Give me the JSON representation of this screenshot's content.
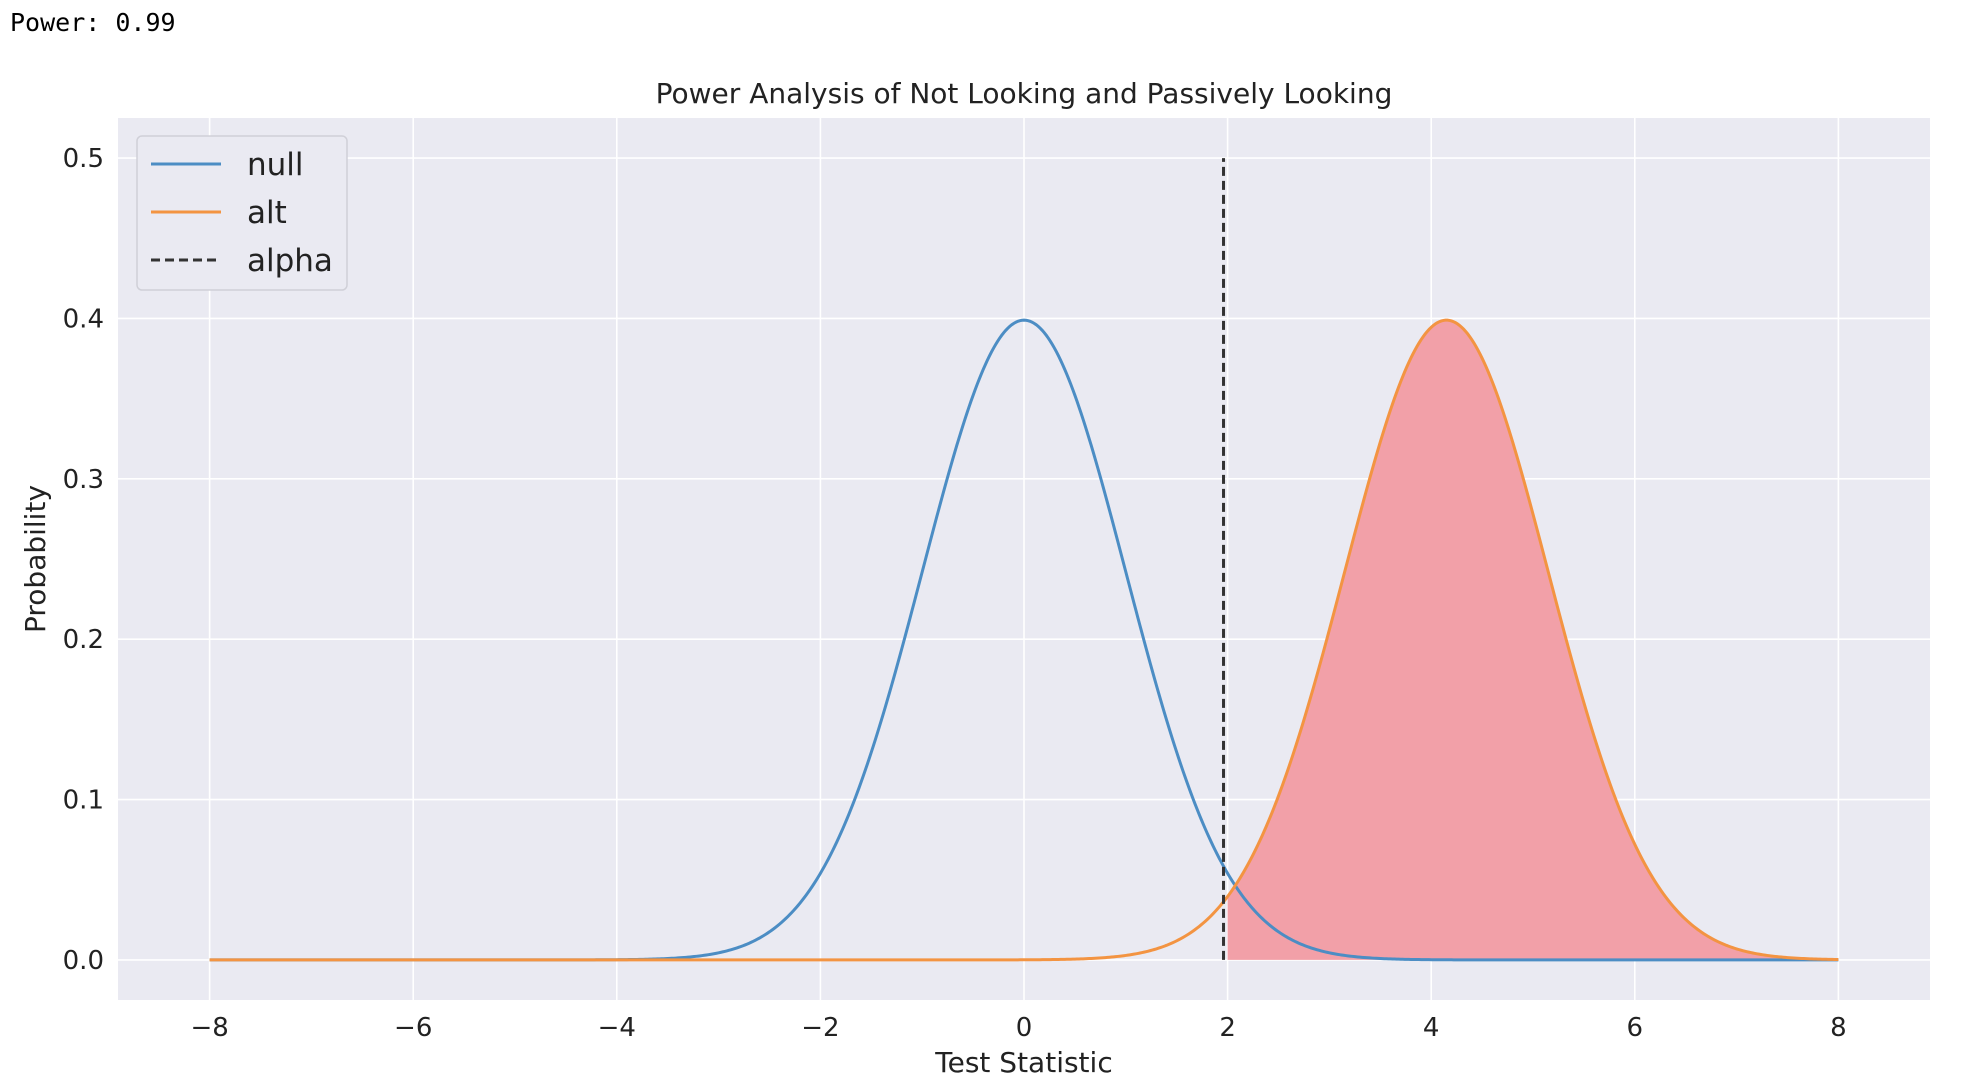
{
  "output_text": "Power: 0.99",
  "colors": {
    "background": "#EAEAF2",
    "grid": "#FFFFFF",
    "null_line": "#4C8DC4",
    "alt_line": "#F39442",
    "alpha_line": "#333333",
    "power_fill": "#F2A0A8"
  },
  "chart_data": {
    "type": "line",
    "title": "Power Analysis of Not Looking and Passively Looking",
    "xlabel": "Test Statistic",
    "ylabel": "Probability",
    "xlim": [
      -8.9,
      8.9
    ],
    "ylim": [
      -0.025,
      0.525
    ],
    "xticks": [
      -8,
      -6,
      -4,
      -2,
      0,
      2,
      4,
      6,
      8
    ],
    "xtick_labels": [
      "−8",
      "−6",
      "−4",
      "−2",
      "0",
      "2",
      "4",
      "6",
      "8"
    ],
    "yticks": [
      0.0,
      0.1,
      0.2,
      0.3,
      0.4,
      0.5
    ],
    "ytick_labels": [
      "0.0",
      "0.1",
      "0.2",
      "0.3",
      "0.4",
      "0.5"
    ],
    "grid": true,
    "legend_position": "top-left",
    "series": [
      {
        "name": "null",
        "kind": "normal_pdf",
        "mean": 0,
        "sd": 1,
        "x_range": [
          -8,
          8
        ],
        "color": "#4C8DC4"
      },
      {
        "name": "alt",
        "kind": "normal_pdf",
        "mean": 4.15,
        "sd": 1,
        "x_range": [
          -8,
          8
        ],
        "color": "#F39442"
      },
      {
        "name": "alpha",
        "kind": "vline",
        "x": 1.96,
        "y_range": [
          0,
          0.5
        ],
        "style": "dashed",
        "color": "#333333"
      }
    ],
    "shaded_region": {
      "under": "alt",
      "x_range": [
        2.0,
        8.0
      ],
      "color": "#F2A0A8",
      "represents": "power"
    }
  }
}
